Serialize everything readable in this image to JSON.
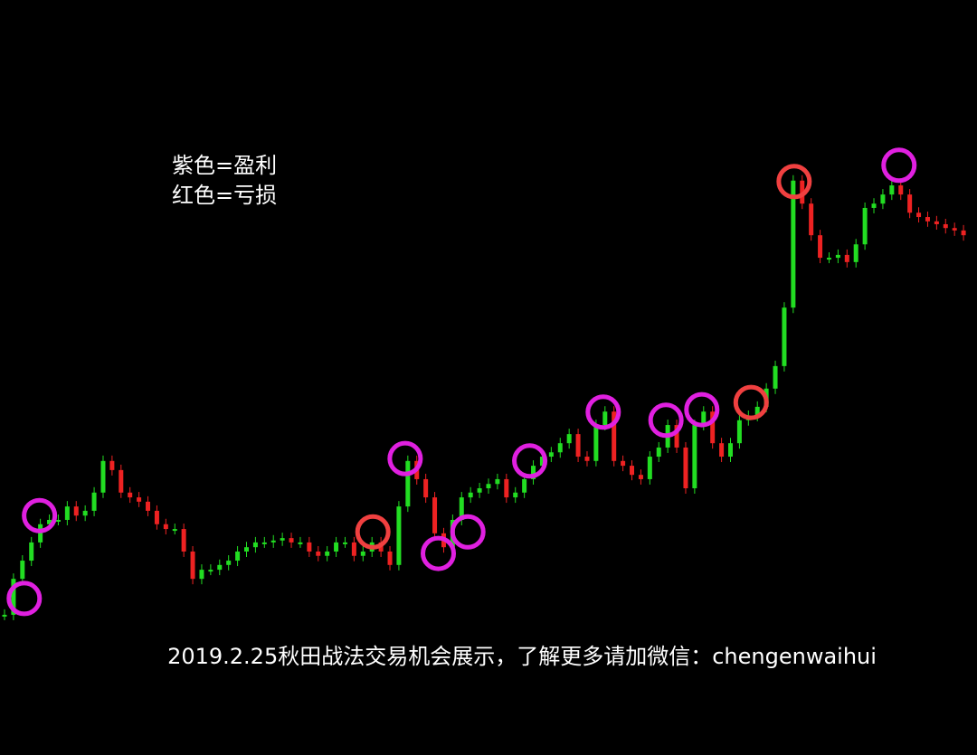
{
  "chart_data": {
    "type": "candlestick",
    "notes": [
      "紫色=盈利",
      "红色=亏损"
    ],
    "caption": "2019.2.25秋田战法交易机会展示，了解更多请加微信：chengenwaihui",
    "up_color": "#22dd22",
    "down_color": "#ee2222",
    "ylim": [
      0,
      100
    ],
    "values": [
      1.9,
      9.4,
      13.2,
      17.0,
      20.8,
      21.7,
      21.7,
      24.5,
      22.6,
      23.6,
      27.4,
      34.0,
      32.1,
      27.4,
      26.4,
      25.5,
      23.6,
      20.8,
      19.8,
      19.8,
      15.1,
      9.4,
      11.3,
      11.3,
      12.3,
      13.2,
      15.1,
      16.0,
      17.0,
      17.0,
      17.4,
      17.9,
      17.0,
      17.0,
      15.1,
      14.2,
      15.1,
      17.0,
      17.0,
      14.2,
      15.1,
      17.0,
      15.1,
      12.3,
      24.5,
      34.0,
      30.2,
      26.4,
      18.9,
      16.0,
      21.7,
      26.4,
      27.4,
      28.3,
      29.2,
      30.2,
      26.4,
      27.4,
      30.2,
      33.0,
      34.9,
      35.8,
      37.7,
      39.6,
      34.9,
      34.0,
      41.5,
      44.3,
      34.0,
      33.0,
      31.1,
      30.2,
      34.9,
      36.8,
      41.5,
      36.8,
      28.3,
      41.5,
      44.3,
      37.7,
      34.9,
      37.7,
      42.5,
      43.4,
      45.3,
      49.1,
      53.8,
      66.0,
      92.5,
      87.7,
      81.1,
      76.4,
      76.4,
      77.0,
      75.5,
      79.2,
      86.8,
      87.7,
      89.6,
      91.5,
      89.6,
      85.8,
      84.9,
      84.0,
      83.4,
      82.6,
      82.1,
      81.1
    ],
    "markers": [
      {
        "x": 2.2,
        "value": 5.3,
        "color": "#e020e0"
      },
      {
        "x": 3.9,
        "value": 22.6,
        "color": "#e020e0"
      },
      {
        "x": 44.7,
        "value": 34.5,
        "color": "#e020e0"
      },
      {
        "x": 48.4,
        "value": 14.7,
        "color": "#e020e0"
      },
      {
        "x": 51.7,
        "value": 19.2,
        "color": "#e020e0"
      },
      {
        "x": 58.6,
        "value": 34.0,
        "color": "#e020e0"
      },
      {
        "x": 66.8,
        "value": 44.2,
        "color": "#e020e0"
      },
      {
        "x": 73.8,
        "value": 42.5,
        "color": "#e020e0"
      },
      {
        "x": 77.8,
        "value": 44.7,
        "color": "#e020e0"
      },
      {
        "x": 99.8,
        "value": 95.7,
        "color": "#e020e0"
      },
      {
        "x": 41.1,
        "value": 19.2,
        "color": "#f04040"
      },
      {
        "x": 83.3,
        "value": 46.2,
        "color": "#f04040"
      },
      {
        "x": 88.1,
        "value": 92.3,
        "color": "#f04040"
      }
    ]
  }
}
